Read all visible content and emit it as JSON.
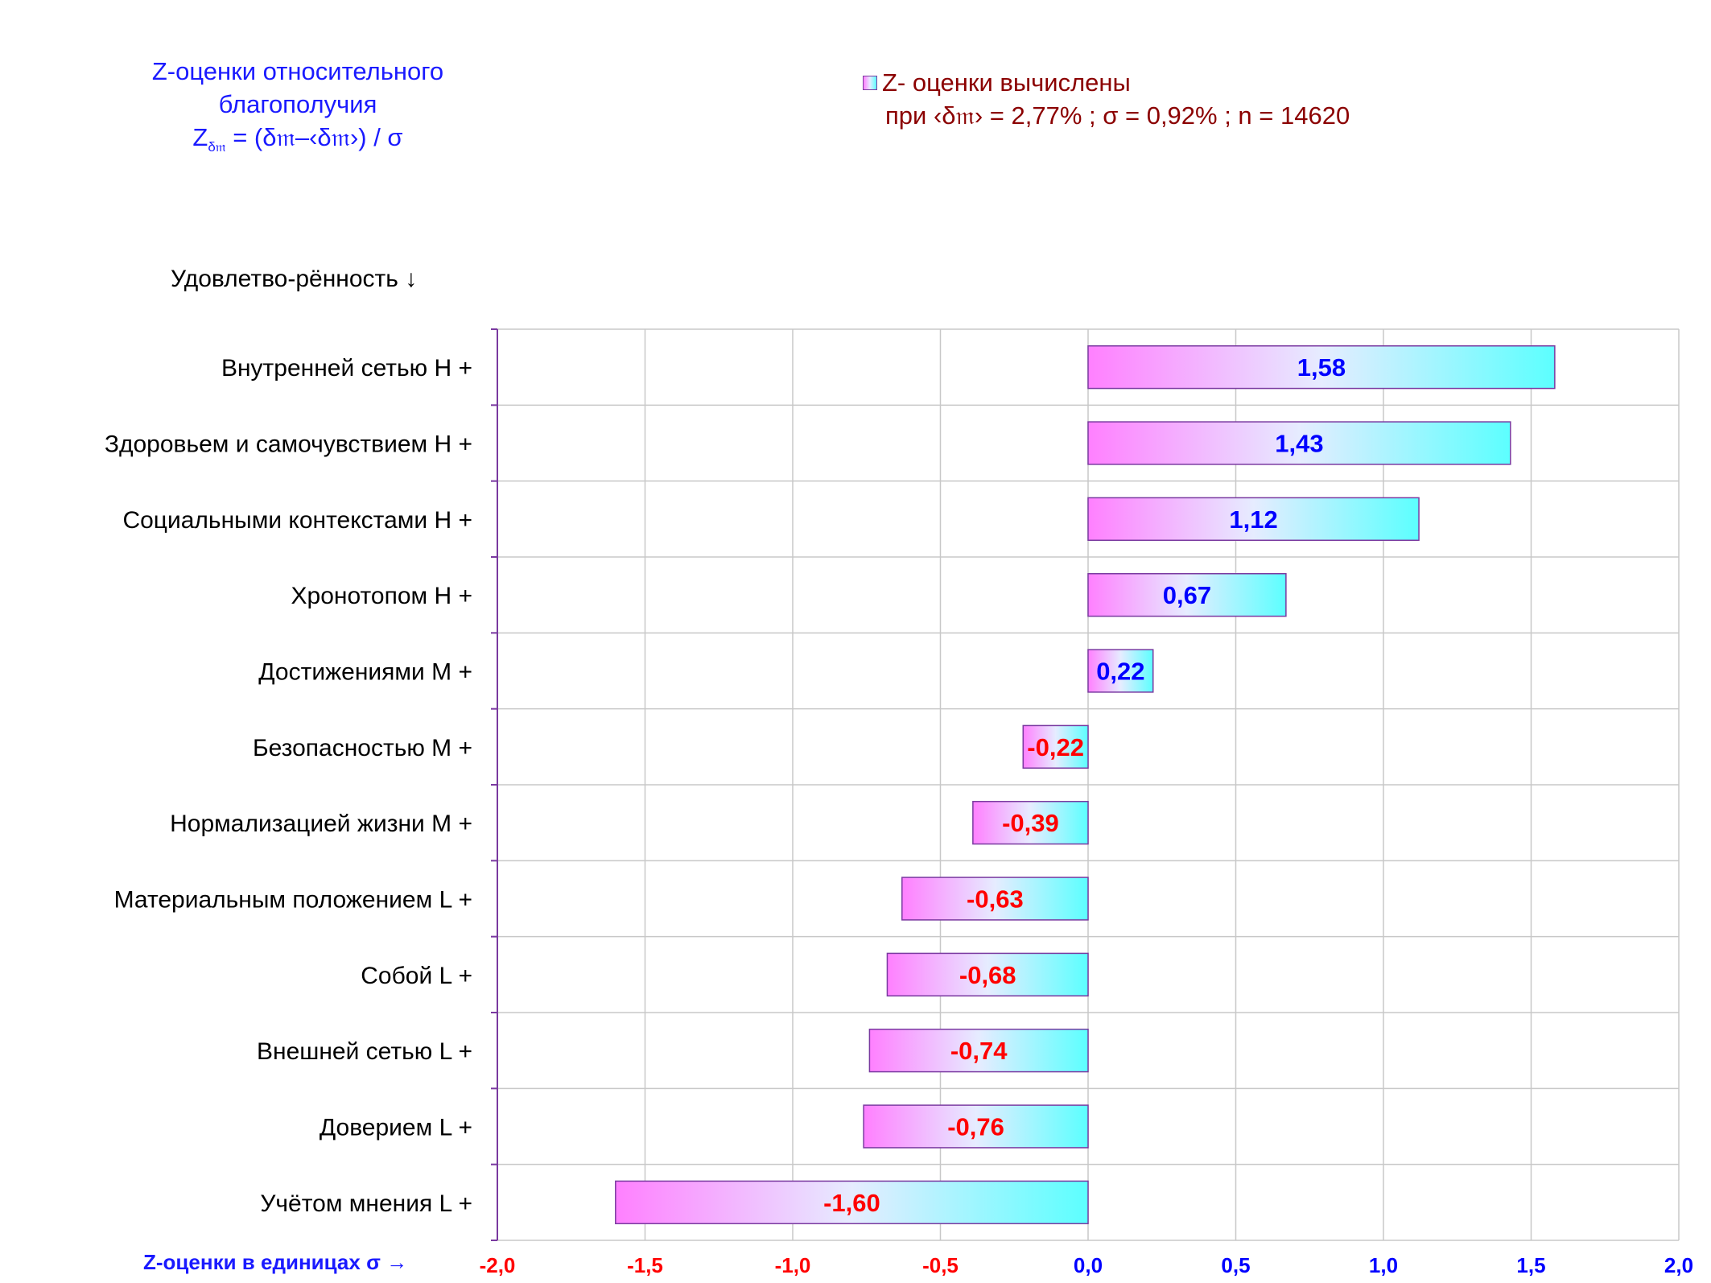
{
  "title": {
    "line1": "Z-оценки  относительного",
    "line2": "благополучия",
    "formula_z": "Z",
    "formula_sub": "δ𝔪",
    "formula_rest": " = (δ𝔪–‹δ𝔪›)  / σ"
  },
  "legend": {
    "label": "Z- оценки вычислены",
    "params": "при ‹δ𝔪› = 2,77% ; σ = 0,92% ; n = 14620"
  },
  "category_header": "Удовлетво-рённость ↓",
  "x_axis_title": "Z-оценки в единицах σ →",
  "colors": {
    "positive_label": "#0000ff",
    "negative_label": "#ff0000",
    "bar_left": "#ff80ff",
    "bar_mid": "#e6ecff",
    "bar_right": "#5cffff",
    "bar_border": "#7a3aa0",
    "grid": "#c8c8c8",
    "axis": "#7a3aa0"
  },
  "chart_data": {
    "type": "bar",
    "orientation": "horizontal",
    "categories": [
      "Внутренней сетью  H +",
      "Здоровьем и самочувствием  H +",
      "Социальными контекстами  H +",
      "Хронотопом  H +",
      "Достижениями  M +",
      "Безопасностью  M +",
      "Нормализацией жизни  M +",
      "Материальным положением  L +",
      "Собой  L +",
      "Внешней сетью  L +",
      "Доверием  L +",
      "Учётом мнения  L +"
    ],
    "values": [
      1.58,
      1.43,
      1.12,
      0.67,
      0.22,
      -0.22,
      -0.39,
      -0.63,
      -0.68,
      -0.74,
      -0.76,
      -1.6
    ],
    "value_labels": [
      "1,58",
      "1,43",
      "1,12",
      "0,67",
      "0,22",
      "-0,22",
      "-0,39",
      "-0,63",
      "-0,68",
      "-0,74",
      "-0,76",
      "-1,60"
    ],
    "xlim": [
      -2.0,
      2.0
    ],
    "x_ticks": [
      -2.0,
      -1.5,
      -1.0,
      -0.5,
      0.0,
      0.5,
      1.0,
      1.5,
      2.0
    ],
    "x_tick_labels": [
      "-2,0",
      "-1,5",
      "-1,0",
      "-0,5",
      "0,0",
      "0,5",
      "1,0",
      "1,5",
      "2,0"
    ],
    "grid": true,
    "legend_position": "top-right"
  }
}
